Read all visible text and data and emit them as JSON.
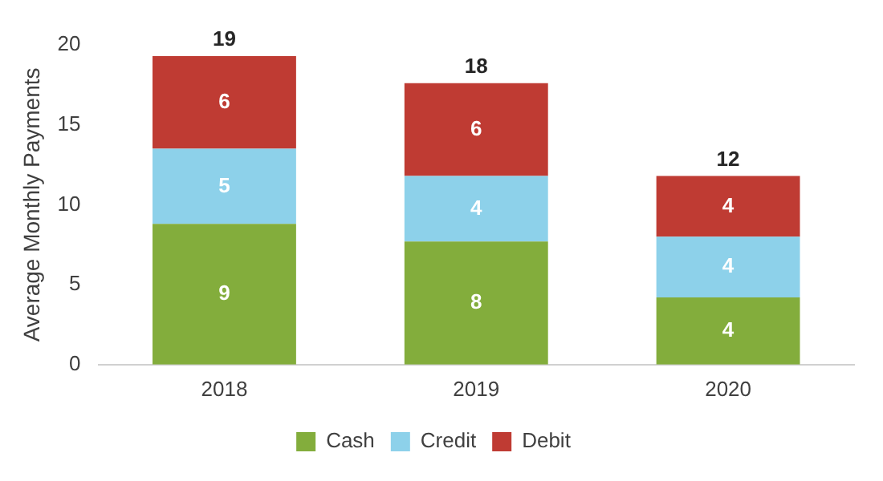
{
  "chart_data": {
    "type": "bar",
    "stacked": true,
    "ylabel": "Average Monthly Payments",
    "categories": [
      "2018",
      "2019",
      "2020"
    ],
    "series": [
      {
        "name": "Cash",
        "color": "#83ad3c",
        "values": [
          8.8,
          7.7,
          4.2
        ],
        "value_labels": [
          "9",
          "8",
          "4"
        ]
      },
      {
        "name": "Credit",
        "color": "#8dd1ea",
        "values": [
          4.7,
          4.1,
          3.8
        ],
        "value_labels": [
          "5",
          "4",
          "4"
        ]
      },
      {
        "name": "Debit",
        "color": "#bf3b33",
        "values": [
          5.8,
          5.8,
          3.8
        ],
        "value_labels": [
          "6",
          "6",
          "4"
        ]
      }
    ],
    "totals": [
      "19",
      "18",
      "12"
    ],
    "ylim": [
      0,
      20
    ],
    "yticks": [
      0,
      5,
      10,
      15,
      20
    ],
    "grid": false,
    "legend": "bottom"
  }
}
